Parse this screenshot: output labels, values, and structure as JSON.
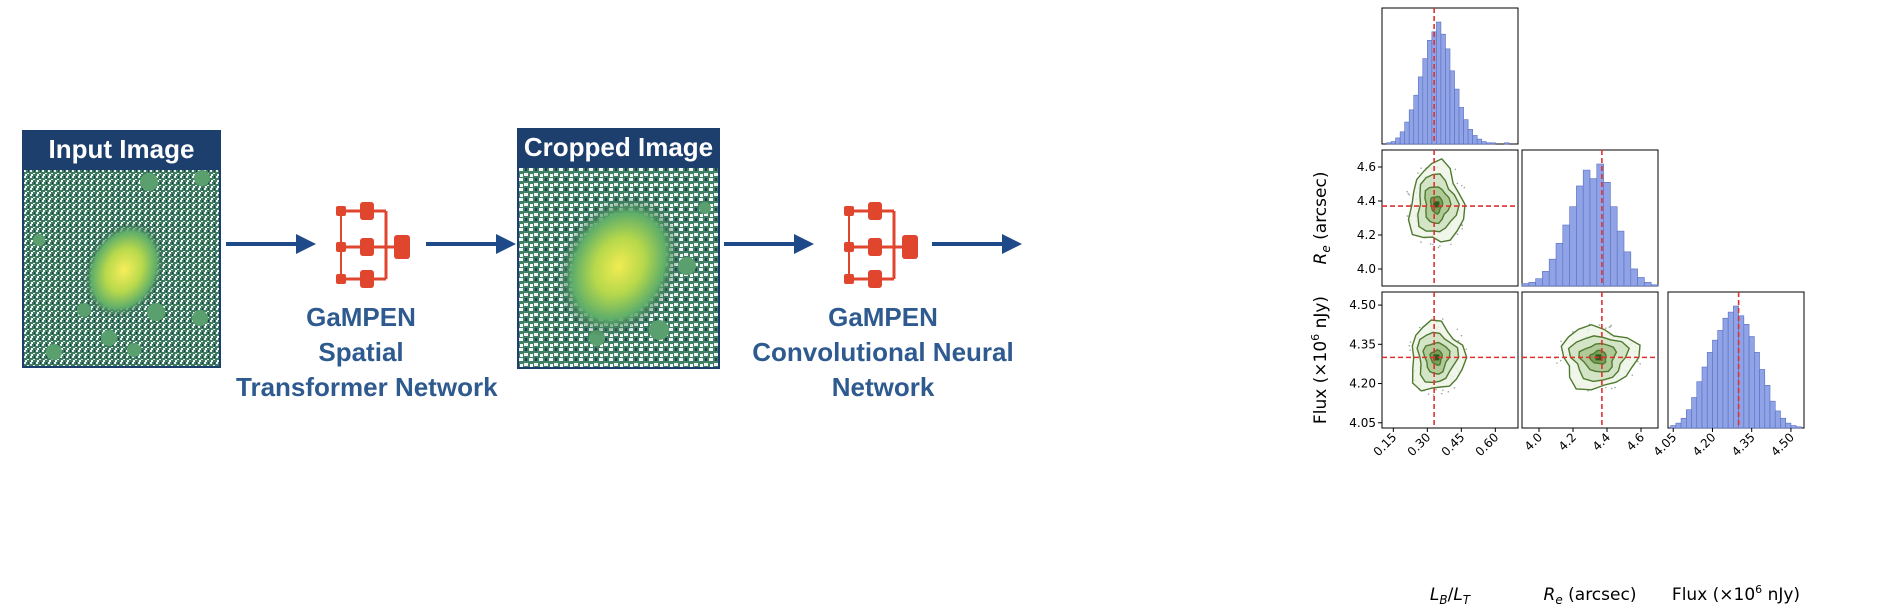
{
  "panels": {
    "input": {
      "title": "Input Image"
    },
    "cropped": {
      "title": "Cropped Image"
    }
  },
  "networks": {
    "stn": {
      "lines": [
        "GaMPEN",
        "Spatial",
        "Transformer Network"
      ]
    },
    "cnn": {
      "lines": [
        "GaMPEN",
        "Convolutional Neural",
        "Network"
      ]
    }
  },
  "colors": {
    "header_bg": "#1d3f6e",
    "arrow": "#1f4a8a",
    "network_icon": "#e0452e",
    "caption": "#2e5a8f",
    "histogram": "#8fa3e6",
    "contour": "#4f7a2f",
    "truth_line": "#e03030"
  },
  "icons": [
    "network-icon",
    "arrow-right-icon"
  ],
  "chart_data": {
    "type": "corner",
    "parameters": [
      {
        "label": "L_B/L_T",
        "ticks": [
          "0.15",
          "0.30",
          "0.45",
          "0.60"
        ],
        "tick_values": [
          0.15,
          0.3,
          0.45,
          0.6
        ],
        "range": [
          0.1,
          0.7
        ],
        "truth": 0.33
      },
      {
        "label": "R_e (arcsec)",
        "ticks": [
          "4.0",
          "4.2",
          "4.4",
          "4.6"
        ],
        "tick_values": [
          4.0,
          4.2,
          4.4,
          4.6
        ],
        "range": [
          3.9,
          4.7
        ],
        "truth": 4.37
      },
      {
        "label": "Flux (×10^6 nJy)",
        "ticks": [
          "4.05",
          "4.20",
          "4.35",
          "4.50"
        ],
        "tick_values": [
          4.05,
          4.2,
          4.35,
          4.5
        ],
        "range": [
          4.03,
          4.55
        ],
        "truth": 4.3
      }
    ],
    "histograms": [
      {
        "parameter": "L_B/L_T",
        "bins": [
          0.12,
          0.14,
          0.16,
          0.18,
          0.2,
          0.22,
          0.24,
          0.26,
          0.28,
          0.3,
          0.32,
          0.34,
          0.36,
          0.38,
          0.4,
          0.42,
          0.44,
          0.46,
          0.48,
          0.5,
          0.52,
          0.54,
          0.56,
          0.58,
          0.6,
          0.62,
          0.64,
          0.66
        ],
        "counts": [
          1,
          2,
          5,
          10,
          18,
          28,
          40,
          55,
          70,
          85,
          92,
          100,
          90,
          78,
          60,
          45,
          30,
          20,
          12,
          7,
          4,
          2,
          1,
          1,
          0,
          0,
          1,
          0
        ]
      },
      {
        "parameter": "R_e (arcsec)",
        "bins": [
          3.9,
          3.94,
          3.98,
          4.02,
          4.06,
          4.1,
          4.14,
          4.18,
          4.22,
          4.26,
          4.3,
          4.34,
          4.38,
          4.42,
          4.46,
          4.5,
          4.54,
          4.58,
          4.62,
          4.66
        ],
        "counts": [
          2,
          3,
          6,
          12,
          22,
          35,
          50,
          65,
          82,
          95,
          88,
          100,
          85,
          65,
          45,
          28,
          14,
          7,
          3,
          1
        ]
      },
      {
        "parameter": "Flux (×10^6 nJy)",
        "bins": [
          4.04,
          4.06,
          4.08,
          4.1,
          4.12,
          4.14,
          4.16,
          4.18,
          4.2,
          4.22,
          4.24,
          4.26,
          4.28,
          4.3,
          4.32,
          4.34,
          4.36,
          4.38,
          4.4,
          4.42,
          4.44,
          4.46,
          4.48,
          4.5,
          4.52
        ],
        "counts": [
          2,
          4,
          8,
          15,
          25,
          38,
          50,
          62,
          72,
          80,
          90,
          95,
          100,
          92,
          85,
          75,
          62,
          48,
          35,
          22,
          14,
          8,
          4,
          2,
          1
        ]
      }
    ],
    "contours_2d": [
      {
        "x": "L_B/L_T",
        "y": "R_e (arcsec)",
        "center": [
          0.34,
          4.38
        ],
        "spread": [
          0.09,
          0.18
        ]
      },
      {
        "x": "L_B/L_T",
        "y": "Flux (×10^6 nJy)",
        "center": [
          0.34,
          4.3
        ],
        "spread": [
          0.09,
          0.1
        ]
      },
      {
        "x": "R_e (arcsec)",
        "y": "Flux (×10^6 nJy)",
        "center": [
          4.35,
          4.3
        ],
        "spread": [
          0.17,
          0.09
        ]
      }
    ]
  }
}
